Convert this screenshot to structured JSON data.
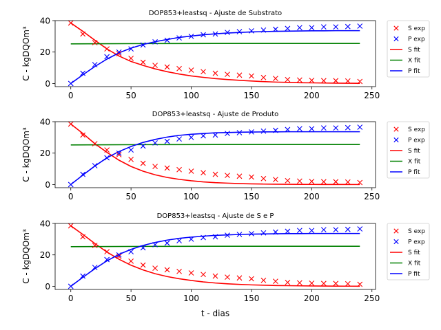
{
  "figure": {
    "xlabel": "t - dias",
    "ylabel": "C - kgDQOm³"
  },
  "series_colors": {
    "S": "#ff0000",
    "P": "#0000ff",
    "X": "#008000"
  },
  "chart_data": [
    {
      "type": "scatter",
      "title": "DOP853+leastsq - Ajuste de Substrato",
      "xlabel": "",
      "ylabel": "C - kgDQOm³",
      "xlim": [
        -13,
        253
      ],
      "ylim": [
        -2,
        40
      ],
      "xticks": [
        0,
        50,
        100,
        150,
        200,
        250
      ],
      "yticks": [
        0,
        20,
        40
      ],
      "legend": [
        "S exp",
        "P exp",
        "S fit",
        "X fit",
        "P fit"
      ],
      "legend_position": "outside-right",
      "series": [
        {
          "name": "S exp",
          "kind": "marker",
          "color": "#ff0000",
          "x": [
            0,
            10,
            20,
            30,
            40,
            50,
            60,
            70,
            80,
            90,
            100,
            110,
            120,
            130,
            140,
            150,
            160,
            170,
            180,
            190,
            200,
            210,
            220,
            230,
            240
          ],
          "y": [
            38.5,
            31.5,
            26,
            22,
            19,
            16,
            13.5,
            11.5,
            10.5,
            9.5,
            8.5,
            7.5,
            6.5,
            5.8,
            5.3,
            4.8,
            3.8,
            3.2,
            2.5,
            2.2,
            2,
            1.8,
            1.8,
            1.6,
            1.3
          ]
        },
        {
          "name": "P exp",
          "kind": "marker",
          "color": "#0000ff",
          "x": [
            0,
            10,
            20,
            30,
            40,
            50,
            60,
            70,
            80,
            90,
            100,
            110,
            120,
            130,
            140,
            150,
            160,
            170,
            180,
            190,
            200,
            210,
            220,
            230,
            240
          ],
          "y": [
            0,
            6.5,
            12,
            17,
            20,
            22,
            24.5,
            26.5,
            27.5,
            29,
            30,
            31,
            31.5,
            32.5,
            33,
            33.5,
            34,
            34.5,
            35,
            35.5,
            35.5,
            36,
            36,
            36.2,
            36.5
          ]
        },
        {
          "name": "S fit",
          "kind": "line",
          "color": "#ff0000",
          "x": [
            0,
            10,
            20,
            30,
            40,
            50,
            60,
            70,
            80,
            90,
            100,
            110,
            120,
            130,
            140,
            150,
            160,
            170,
            180,
            190,
            200,
            210,
            220,
            230,
            240
          ],
          "y": [
            38.5,
            33.2,
            27.5,
            22,
            17.5,
            14,
            11.5,
            9.3,
            7.5,
            6,
            4.8,
            3.9,
            3.1,
            2.5,
            2,
            1.6,
            1.2,
            0.9,
            0.7,
            0.5,
            0.4,
            0.3,
            0.2,
            0.15,
            0.1
          ]
        },
        {
          "name": "X fit",
          "kind": "line",
          "color": "#008000",
          "x": [
            0,
            60,
            120,
            180,
            240
          ],
          "y": [
            25.2,
            25.4,
            25.5,
            25.5,
            25.5
          ]
        },
        {
          "name": "P fit",
          "kind": "line",
          "color": "#0000ff",
          "x": [
            0,
            10,
            20,
            30,
            40,
            50,
            60,
            70,
            80,
            90,
            100,
            110,
            120,
            130,
            140,
            150,
            160,
            170,
            180,
            190,
            200,
            210,
            220,
            230,
            240
          ],
          "y": [
            0,
            5.5,
            10.8,
            15.5,
            19.5,
            22.5,
            24.8,
            26.6,
            28,
            29.3,
            30.2,
            31,
            31.6,
            32.1,
            32.5,
            32.8,
            33,
            33.2,
            33.3,
            33.4,
            33.5,
            33.5,
            33.6,
            33.6,
            33.6
          ]
        }
      ]
    },
    {
      "type": "scatter",
      "title": "DOP853+leastsq - Ajuste de Produto",
      "xlabel": "",
      "ylabel": "C - kgDQOm³",
      "xlim": [
        -13,
        253
      ],
      "ylim": [
        -2,
        40
      ],
      "xticks": [
        0,
        50,
        100,
        150,
        200,
        250
      ],
      "yticks": [
        0,
        20,
        40
      ],
      "legend": [
        "S exp",
        "P exp",
        "S fit",
        "X fit",
        "P fit"
      ],
      "legend_position": "outside-right",
      "series": [
        {
          "name": "S exp",
          "kind": "marker",
          "color": "#ff0000",
          "x": [
            0,
            10,
            20,
            30,
            40,
            50,
            60,
            70,
            80,
            90,
            100,
            110,
            120,
            130,
            140,
            150,
            160,
            170,
            180,
            190,
            200,
            210,
            220,
            230,
            240
          ],
          "y": [
            38.5,
            31.5,
            26,
            22,
            19,
            16,
            13.5,
            11.5,
            10.5,
            9.5,
            8.5,
            7.5,
            6.5,
            5.8,
            5.3,
            4.8,
            3.8,
            3.2,
            2.5,
            2.2,
            2,
            1.8,
            1.8,
            1.6,
            1.3
          ]
        },
        {
          "name": "P exp",
          "kind": "marker",
          "color": "#0000ff",
          "x": [
            0,
            10,
            20,
            30,
            40,
            50,
            60,
            70,
            80,
            90,
            100,
            110,
            120,
            130,
            140,
            150,
            160,
            170,
            180,
            190,
            200,
            210,
            220,
            230,
            240
          ],
          "y": [
            0,
            6.5,
            12,
            17,
            20,
            22,
            24.5,
            26.5,
            27.5,
            29,
            30,
            31,
            31.5,
            32.5,
            33,
            33.5,
            34,
            34.5,
            35,
            35.5,
            35.5,
            36,
            36,
            36.2,
            36.5
          ]
        },
        {
          "name": "S fit",
          "kind": "line",
          "color": "#ff0000",
          "x": [
            0,
            10,
            20,
            30,
            40,
            50,
            60,
            70,
            80,
            90,
            100,
            110,
            120,
            130,
            140,
            150,
            160,
            170,
            180,
            190,
            200,
            210,
            220,
            230,
            240
          ],
          "y": [
            38.5,
            32.5,
            26,
            20.5,
            15.5,
            11.5,
            8.5,
            6.2,
            4.5,
            3.3,
            2.4,
            1.7,
            1.2,
            0.9,
            0.6,
            0.45,
            0.3,
            0.22,
            0.15,
            0.1,
            0.08,
            0.06,
            0.04,
            0.03,
            0.02
          ]
        },
        {
          "name": "X fit",
          "kind": "line",
          "color": "#008000",
          "x": [
            0,
            60,
            120,
            180,
            240
          ],
          "y": [
            25.2,
            25.4,
            25.5,
            25.5,
            25.5
          ]
        },
        {
          "name": "P fit",
          "kind": "line",
          "color": "#0000ff",
          "x": [
            0,
            10,
            20,
            30,
            40,
            50,
            60,
            70,
            80,
            90,
            100,
            110,
            120,
            130,
            140,
            150,
            160,
            170,
            180,
            190,
            200,
            210,
            220,
            230,
            240
          ],
          "y": [
            0,
            6,
            11.8,
            17,
            21,
            24.2,
            26.8,
            28.7,
            30.2,
            31.3,
            32,
            32.5,
            32.9,
            33.1,
            33.3,
            33.4,
            33.5,
            33.5,
            33.6,
            33.6,
            33.6,
            33.6,
            33.6,
            33.6,
            33.6
          ]
        }
      ]
    },
    {
      "type": "scatter",
      "title": "DOP853+leastsq - Ajuste de S e P",
      "xlabel": "t - dias",
      "ylabel": "C - kgDQOm³",
      "xlim": [
        -13,
        253
      ],
      "ylim": [
        -2,
        40
      ],
      "xticks": [
        0,
        50,
        100,
        150,
        200,
        250
      ],
      "yticks": [
        0,
        20,
        40
      ],
      "legend": [
        "S exp",
        "P exp",
        "S fit",
        "X fit",
        "P fit"
      ],
      "legend_position": "outside-right",
      "series": [
        {
          "name": "S exp",
          "kind": "marker",
          "color": "#ff0000",
          "x": [
            0,
            10,
            20,
            30,
            40,
            50,
            60,
            70,
            80,
            90,
            100,
            110,
            120,
            130,
            140,
            150,
            160,
            170,
            180,
            190,
            200,
            210,
            220,
            230,
            240
          ],
          "y": [
            38.5,
            31.5,
            26,
            22,
            19,
            16,
            13.5,
            11.5,
            10.5,
            9.5,
            8.5,
            7.5,
            6.5,
            5.8,
            5.3,
            4.8,
            3.8,
            3.2,
            2.5,
            2.2,
            2,
            1.8,
            1.8,
            1.6,
            1.3
          ]
        },
        {
          "name": "P exp",
          "kind": "marker",
          "color": "#0000ff",
          "x": [
            0,
            10,
            20,
            30,
            40,
            50,
            60,
            70,
            80,
            90,
            100,
            110,
            120,
            130,
            140,
            150,
            160,
            170,
            180,
            190,
            200,
            210,
            220,
            230,
            240
          ],
          "y": [
            0,
            6.5,
            12,
            17,
            20,
            22,
            24.5,
            26.5,
            27.5,
            29,
            30,
            31,
            31.5,
            32.5,
            33,
            33.5,
            34,
            34.5,
            35,
            35.5,
            35.5,
            36,
            36,
            36.2,
            36.5
          ]
        },
        {
          "name": "S fit",
          "kind": "line",
          "color": "#ff0000",
          "x": [
            0,
            10,
            20,
            30,
            40,
            50,
            60,
            70,
            80,
            90,
            100,
            110,
            120,
            130,
            140,
            150,
            160,
            170,
            180,
            190,
            200,
            210,
            220,
            230,
            240
          ],
          "y": [
            38.5,
            33,
            27.2,
            21.8,
            17.2,
            13.4,
            10.4,
            8,
            6.2,
            4.8,
            3.7,
            2.8,
            2.1,
            1.6,
            1.2,
            0.9,
            0.7,
            0.5,
            0.4,
            0.3,
            0.2,
            0.15,
            0.1,
            0.08,
            0.06
          ]
        },
        {
          "name": "X fit",
          "kind": "line",
          "color": "#008000",
          "x": [
            0,
            60,
            120,
            180,
            240
          ],
          "y": [
            25.2,
            25.4,
            25.5,
            25.5,
            25.5
          ]
        },
        {
          "name": "P fit",
          "kind": "line",
          "color": "#0000ff",
          "x": [
            0,
            10,
            20,
            30,
            40,
            50,
            60,
            70,
            80,
            90,
            100,
            110,
            120,
            130,
            140,
            150,
            160,
            170,
            180,
            190,
            200,
            210,
            220,
            230,
            240
          ],
          "y": [
            0,
            5.7,
            11.2,
            16.2,
            20.3,
            23.5,
            26,
            27.9,
            29.4,
            30.5,
            31.3,
            31.9,
            32.4,
            32.7,
            33,
            33.2,
            33.3,
            33.4,
            33.5,
            33.5,
            33.6,
            33.6,
            33.6,
            33.6,
            33.6
          ]
        }
      ]
    }
  ]
}
